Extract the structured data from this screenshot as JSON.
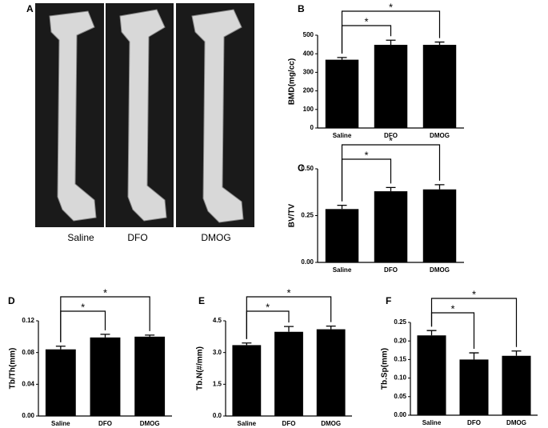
{
  "panel_a": {
    "label": "A",
    "captions": [
      "Saline",
      "DFO",
      "DMOG"
    ]
  },
  "chart_data": [
    {
      "type": "bar",
      "panel": "B",
      "y_label": "BMD(mg/cc)",
      "categories": [
        "Saline",
        "DFO",
        "DMOG"
      ],
      "values": [
        368,
        448,
        448
      ],
      "errors": [
        12,
        25,
        15
      ],
      "color": "#000000",
      "ylim": [
        0,
        500
      ],
      "yticks": [
        0,
        100,
        200,
        300,
        400,
        500
      ],
      "annotations": [
        "*",
        "*"
      ]
    },
    {
      "type": "bar",
      "panel": "C",
      "y_label": "BV/TV",
      "categories": [
        "Saline",
        "DFO",
        "DMOG"
      ],
      "values": [
        0.285,
        0.38,
        0.39
      ],
      "errors": [
        0.02,
        0.02,
        0.025
      ],
      "color": "#000000",
      "ylim": [
        0,
        0.5
      ],
      "yticks": [
        {
          "value": 0,
          "label": "0.00"
        },
        {
          "value": 0.25,
          "label": "0.25"
        },
        {
          "value": 0.5,
          "label": "0.50"
        }
      ],
      "annotations": [
        "*",
        "*"
      ]
    },
    {
      "type": "bar",
      "panel": "D",
      "y_label": "Tb/Th(mm)",
      "categories": [
        "Saline",
        "DFO",
        "DMOG"
      ],
      "values": [
        0.084,
        0.099,
        0.1
      ],
      "errors": [
        0.004,
        0.004,
        0.002
      ],
      "color": "#000000",
      "ylim": [
        0,
        0.12
      ],
      "yticks": [
        {
          "value": 0,
          "label": "0.00"
        },
        {
          "value": 0.04,
          "label": "0.04"
        },
        {
          "value": 0.08,
          "label": "0.08"
        },
        {
          "value": 0.12,
          "label": "0.12"
        }
      ],
      "annotations": [
        "*",
        "*"
      ]
    },
    {
      "type": "bar",
      "panel": "E",
      "y_label": "Tb.N(#/mm)",
      "categories": [
        "Saline",
        "DFO",
        "DMOG"
      ],
      "values": [
        3.35,
        3.98,
        4.1
      ],
      "errors": [
        0.1,
        0.25,
        0.15
      ],
      "color": "#000000",
      "ylim": [
        0,
        4.5
      ],
      "yticks": [
        {
          "value": 0,
          "label": "0.0"
        },
        {
          "value": 1.5,
          "label": "1.5"
        },
        {
          "value": 3,
          "label": "3.0"
        },
        {
          "value": 4.5,
          "label": "4.5"
        }
      ],
      "annotations": [
        "*",
        "*"
      ]
    },
    {
      "type": "bar",
      "panel": "F",
      "y_label": "Tb.Sp(mm)",
      "categories": [
        "Saline",
        "DFO",
        "DMOG"
      ],
      "values": [
        0.215,
        0.15,
        0.16
      ],
      "errors": [
        0.013,
        0.018,
        0.013
      ],
      "color": "#000000",
      "ylim": [
        0,
        0.25
      ],
      "yticks": [
        {
          "value": 0,
          "label": "0.00"
        },
        {
          "value": 0.05,
          "label": "0.05"
        },
        {
          "value": 0.1,
          "label": "0.10"
        },
        {
          "value": 0.15,
          "label": "0.15"
        },
        {
          "value": 0.2,
          "label": "0.20"
        },
        {
          "value": 0.25,
          "label": "0.25"
        }
      ],
      "annotations": [
        "*",
        "*"
      ]
    }
  ]
}
